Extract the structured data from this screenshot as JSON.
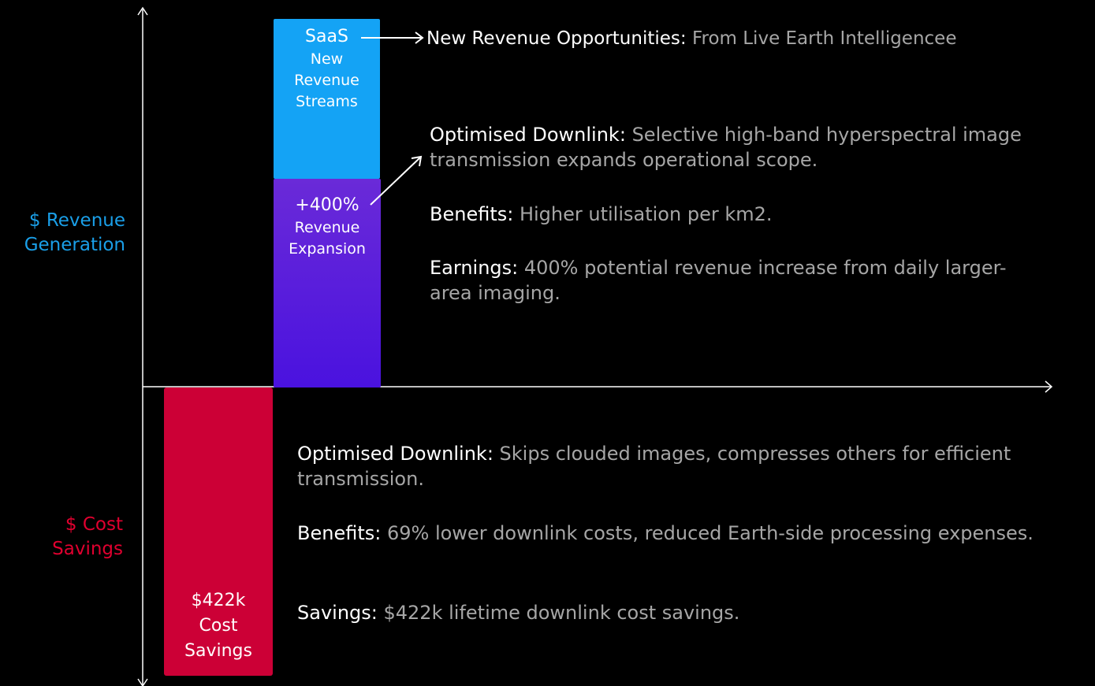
{
  "axis_labels": {
    "revenue": [
      "$ Revenue",
      "Generation"
    ],
    "cost": [
      "$ Cost",
      "Savings"
    ]
  },
  "blocks": [
    {
      "lines": [
        "SaaS",
        "New",
        "Revenue",
        "Streams"
      ]
    },
    {
      "lines": [
        "+400%",
        "Revenue",
        "Expansion"
      ]
    },
    {
      "lines": [
        "$422k",
        "Cost",
        "Savings"
      ]
    }
  ],
  "top_note": {
    "label": "New Revenue Opportunities:",
    "text": "From Live Earth Intelligencee"
  },
  "revenue_notes": [
    {
      "label": "Optimised Downlink:",
      "text": "Selective high-band hyperspectral image transmission expands operational scope."
    },
    {
      "label": "Benefits:",
      "text": "Higher utilisation per km2."
    },
    {
      "label": "Earnings:",
      "text": "400% potential revenue increase from daily larger-area imaging."
    }
  ],
  "cost_notes": [
    {
      "label": "Optimised Downlink:",
      "text": " Skips clouded images, compresses others for efficient transmission."
    },
    {
      "label": "Benefits:",
      "text": "69% lower downlink costs, reduced Earth-side processing expenses."
    },
    {
      "label": "Savings:",
      "text": "$422k lifetime downlink cost savings."
    }
  ]
}
